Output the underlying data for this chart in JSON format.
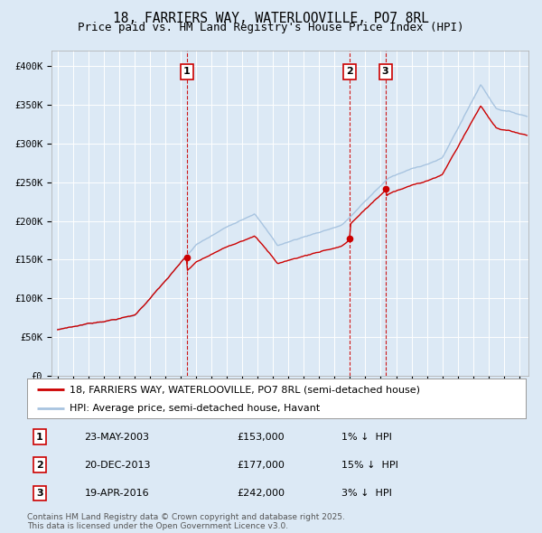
{
  "title": "18, FARRIERS WAY, WATERLOOVILLE, PO7 8RL",
  "subtitle": "Price paid vs. HM Land Registry's House Price Index (HPI)",
  "ylim": [
    0,
    420000
  ],
  "yticks": [
    0,
    50000,
    100000,
    150000,
    200000,
    250000,
    300000,
    350000,
    400000
  ],
  "ytick_labels": [
    "£0",
    "£50K",
    "£100K",
    "£150K",
    "£200K",
    "£250K",
    "£300K",
    "£350K",
    "£400K"
  ],
  "hpi_color": "#a8c4e0",
  "price_color": "#cc0000",
  "vline_color": "#cc0000",
  "background_color": "#dce9f5",
  "plot_bg_color": "#dce9f5",
  "grid_color": "#ffffff",
  "sales": [
    {
      "num": 1,
      "date": "23-MAY-2003",
      "price": 153000,
      "pct": "1%",
      "direction": "↓"
    },
    {
      "num": 2,
      "date": "20-DEC-2013",
      "price": 177000,
      "pct": "15%",
      "direction": "↓"
    },
    {
      "num": 3,
      "date": "19-APR-2016",
      "price": 242000,
      "pct": "3%",
      "direction": "↓"
    }
  ],
  "sale_years": [
    2003.388,
    2013.967,
    2016.3
  ],
  "sale_prices": [
    153000,
    177000,
    242000
  ],
  "legend_property": "18, FARRIERS WAY, WATERLOOVILLE, PO7 8RL (semi-detached house)",
  "legend_hpi": "HPI: Average price, semi-detached house, Havant",
  "footnote": "Contains HM Land Registry data © Crown copyright and database right 2025.\nThis data is licensed under the Open Government Licence v3.0.",
  "title_fontsize": 10.5,
  "subtitle_fontsize": 9,
  "tick_fontsize": 7.5,
  "legend_fontsize": 8,
  "table_fontsize": 8,
  "footnote_fontsize": 6.5
}
